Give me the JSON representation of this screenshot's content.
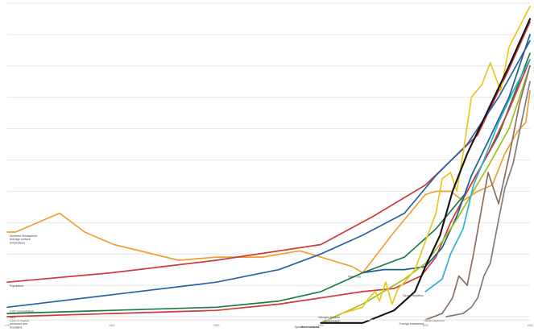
{
  "chart_data": {
    "type": "line",
    "title": "",
    "xlabel": "",
    "ylabel": "",
    "grid": true,
    "legend": "inline labels at series starts",
    "x_ticks": [
      "1750",
      "1800",
      "1850",
      "1900",
      "1950",
      "2000"
    ],
    "xlim": [
      1750,
      2000
    ],
    "ylim": [
      0,
      100
    ],
    "series": [
      {
        "name": "Northern Hemisphere average surface temperature",
        "color": "#f0a030",
        "points": [
          [
            1750,
            27
          ],
          [
            1754,
            27
          ],
          [
            1775,
            33
          ],
          [
            1787,
            27
          ],
          [
            1801,
            23
          ],
          [
            1832,
            18
          ],
          [
            1850,
            19
          ],
          [
            1872,
            19
          ],
          [
            1890,
            21
          ],
          [
            1915,
            16
          ],
          [
            1920,
            14
          ],
          [
            1935,
            27
          ],
          [
            1950,
            39
          ],
          [
            1955,
            40
          ],
          [
            1962,
            40
          ],
          [
            1968,
            37
          ],
          [
            1975,
            40
          ],
          [
            1982,
            42
          ],
          [
            1988,
            52
          ],
          [
            1994,
            59
          ],
          [
            1998,
            62
          ],
          [
            2000,
            72
          ]
        ]
      },
      {
        "name": "Population",
        "color": "#d03a3a",
        "points": [
          [
            1750,
            11
          ],
          [
            1800,
            14
          ],
          [
            1850,
            18
          ],
          [
            1900,
            23
          ],
          [
            1925,
            32
          ],
          [
            1950,
            42
          ],
          [
            1975,
            58
          ],
          [
            1990,
            79
          ],
          [
            2000,
            94
          ]
        ]
      },
      {
        "name": "CO2 concentration",
        "color": "#2a62a8",
        "points": [
          [
            1750,
            3
          ],
          [
            1800,
            7
          ],
          [
            1850,
            11
          ],
          [
            1880,
            15
          ],
          [
            1900,
            20
          ],
          [
            1920,
            26
          ],
          [
            1940,
            33
          ],
          [
            1955,
            45
          ],
          [
            1970,
            55
          ],
          [
            1985,
            70
          ],
          [
            2000,
            88
          ]
        ]
      },
      {
        "name": "N2O concentration",
        "color": "#1f7a4a",
        "points": [
          [
            1750,
            1
          ],
          [
            1800,
            2
          ],
          [
            1850,
            3
          ],
          [
            1880,
            5
          ],
          [
            1900,
            8
          ],
          [
            1920,
            14
          ],
          [
            1940,
            19
          ],
          [
            1955,
            28
          ],
          [
            1970,
            40
          ],
          [
            1985,
            58
          ],
          [
            2000,
            84
          ]
        ]
      },
      {
        "name": "Loss of tropical rainforest and woodland",
        "color": "#d03a3a",
        "points": [
          [
            1750,
            0
          ],
          [
            1800,
            1
          ],
          [
            1850,
            2
          ],
          [
            1880,
            4
          ],
          [
            1900,
            6
          ],
          [
            1920,
            8
          ],
          [
            1935,
            9
          ],
          [
            1948,
            13
          ],
          [
            1955,
            19
          ],
          [
            1962,
            30
          ],
          [
            1970,
            40
          ],
          [
            1980,
            52
          ],
          [
            1990,
            66
          ],
          [
            2000,
            82
          ]
        ]
      },
      {
        "name": "Water use",
        "color": "#1a5f8a",
        "points": [
          [
            1920,
            14
          ],
          [
            1930,
            15
          ],
          [
            1940,
            15
          ],
          [
            1950,
            16
          ],
          [
            1958,
            22
          ],
          [
            1965,
            32
          ],
          [
            1972,
            45
          ],
          [
            1980,
            56
          ],
          [
            1990,
            70
          ],
          [
            2000,
            90
          ]
        ]
      },
      {
        "name": "Species extinctions",
        "color": "#a0c020",
        "points": [
          [
            1900,
            -2
          ],
          [
            1910,
            1
          ],
          [
            1920,
            4
          ],
          [
            1930,
            8
          ],
          [
            1940,
            12
          ],
          [
            1950,
            17
          ],
          [
            1958,
            24
          ],
          [
            1965,
            31
          ],
          [
            1972,
            39
          ],
          [
            1980,
            48
          ],
          [
            1990,
            60
          ],
          [
            2000,
            80
          ]
        ]
      },
      {
        "name": "Ozone depletion",
        "color": "#30b0d0",
        "points": [
          [
            1950,
            8
          ],
          [
            1958,
            12
          ],
          [
            1962,
            20
          ],
          [
            1968,
            28
          ],
          [
            1973,
            42
          ],
          [
            1978,
            50
          ],
          [
            1985,
            62
          ],
          [
            1992,
            72
          ],
          [
            2000,
            82
          ]
        ]
      },
      {
        "name": "Nitrogen fertilizer consumption",
        "color": "#e8c820",
        "points": [
          [
            1910,
            1
          ],
          [
            1920,
            3
          ],
          [
            1923,
            6
          ],
          [
            1926,
            8
          ],
          [
            1928,
            5
          ],
          [
            1931,
            11
          ],
          [
            1934,
            4
          ],
          [
            1937,
            9
          ],
          [
            1940,
            11
          ],
          [
            1945,
            15
          ],
          [
            1950,
            24
          ],
          [
            1955,
            33
          ],
          [
            1958,
            44
          ],
          [
            1962,
            46
          ],
          [
            1965,
            40
          ],
          [
            1968,
            52
          ],
          [
            1972,
            70
          ],
          [
            1977,
            74
          ],
          [
            1981,
            81
          ],
          [
            1986,
            72
          ],
          [
            1990,
            86
          ],
          [
            2000,
            99
          ]
        ]
      },
      {
        "name": "Motor vehicles",
        "color": "#111111",
        "points": [
          [
            1900,
            -2
          ],
          [
            1920,
            -2
          ],
          [
            1935,
            2
          ],
          [
            1945,
            8
          ],
          [
            1950,
            16
          ],
          [
            1957,
            26
          ],
          [
            1963,
            40
          ],
          [
            1970,
            52
          ],
          [
            1980,
            66
          ],
          [
            1990,
            80
          ],
          [
            2000,
            95
          ]
        ]
      },
      {
        "name": "Foreign investment",
        "color": "#8a7060",
        "points": [
          [
            1950,
            -1
          ],
          [
            1958,
            1
          ],
          [
            1963,
            6
          ],
          [
            1966,
            13
          ],
          [
            1970,
            10
          ],
          [
            1973,
            20
          ],
          [
            1977,
            35
          ],
          [
            1980,
            46
          ],
          [
            1985,
            36
          ],
          [
            1990,
            51
          ],
          [
            1995,
            68
          ],
          [
            2000,
            80
          ]
        ]
      },
      {
        "name": "Ocean depletion",
        "color": "#7d7d7d",
        "points": [
          [
            1960,
            0
          ],
          [
            1968,
            1
          ],
          [
            1972,
            3
          ],
          [
            1975,
            6
          ],
          [
            1978,
            13
          ],
          [
            1981,
            17
          ],
          [
            1985,
            31
          ],
          [
            1988,
            41
          ],
          [
            1992,
            49
          ],
          [
            1995,
            59
          ],
          [
            2000,
            75
          ]
        ]
      }
    ],
    "labels": [
      {
        "series": 0,
        "text": "Northern Hemisphere average surface temperature"
      },
      {
        "series": 1,
        "text": "Population"
      },
      {
        "series": 2,
        "text": "CO2 concentration"
      },
      {
        "series": 3,
        "text": "N2O"
      },
      {
        "series": 4,
        "text": "Loss of tropical rainforest and woodland"
      },
      {
        "series": 5,
        "text": "Water use"
      },
      {
        "series": 6,
        "text": "Species extinctions"
      },
      {
        "series": 7,
        "text": "Ozone depletion"
      },
      {
        "series": 8,
        "text": "Nitrogen fertilizer consumption"
      },
      {
        "series": 9,
        "text": "Motor vehicles"
      },
      {
        "series": 10,
        "text": "Foreign investment"
      },
      {
        "series": 11,
        "text": "Ocean depletion"
      }
    ]
  }
}
